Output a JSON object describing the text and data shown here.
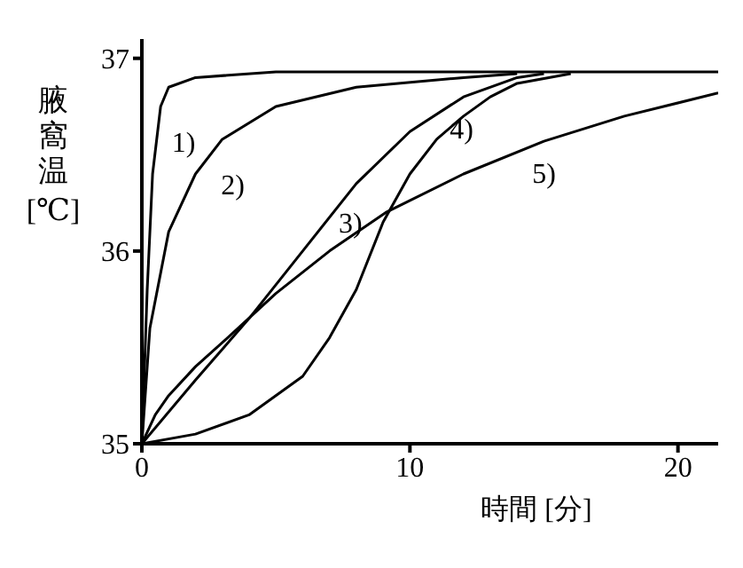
{
  "chart_data": {
    "type": "line",
    "xlabel": "時間 [分]",
    "ylabel": "腋窩温 [℃]",
    "xlim": [
      0,
      21.5
    ],
    "ylim": [
      35,
      37.1
    ],
    "xticks": [
      0,
      10,
      20
    ],
    "yticks": [
      35,
      36,
      37
    ],
    "grid": false,
    "legend": false,
    "marker": "none",
    "line_style": "solid",
    "series": [
      {
        "name": "1)",
        "color": "#000000",
        "x": [
          0,
          0.2,
          0.4,
          0.7,
          1,
          2,
          5,
          21.5
        ],
        "values": [
          35,
          35.8,
          36.4,
          36.75,
          36.85,
          36.9,
          36.93,
          36.93
        ]
      },
      {
        "name": "2)",
        "color": "#000000",
        "x": [
          0,
          0.3,
          1,
          2,
          3,
          5,
          8,
          12,
          14
        ],
        "values": [
          35,
          35.6,
          36.1,
          36.4,
          36.58,
          36.75,
          36.85,
          36.9,
          36.92
        ]
      },
      {
        "name": "3)",
        "color": "#000000",
        "x": [
          0,
          2,
          4,
          6,
          8,
          10,
          12,
          14,
          15
        ],
        "values": [
          35,
          35.33,
          35.65,
          36.0,
          36.35,
          36.62,
          36.8,
          36.9,
          36.92
        ]
      },
      {
        "name": "4)",
        "color": "#000000",
        "x": [
          0,
          2,
          4,
          6,
          7,
          8,
          9,
          10,
          11,
          12,
          13,
          14,
          16
        ],
        "values": [
          35,
          35.05,
          35.15,
          35.35,
          35.55,
          35.8,
          36.15,
          36.4,
          36.58,
          36.7,
          36.8,
          36.87,
          36.92
        ]
      },
      {
        "name": "5)",
        "color": "#000000",
        "x": [
          0,
          0.5,
          1,
          2,
          3.2,
          5,
          7,
          9.1,
          12,
          15,
          18,
          21.5
        ],
        "values": [
          35,
          35.15,
          35.25,
          35.4,
          35.55,
          35.78,
          36.0,
          36.2,
          36.4,
          36.57,
          36.7,
          36.82
        ]
      }
    ]
  }
}
